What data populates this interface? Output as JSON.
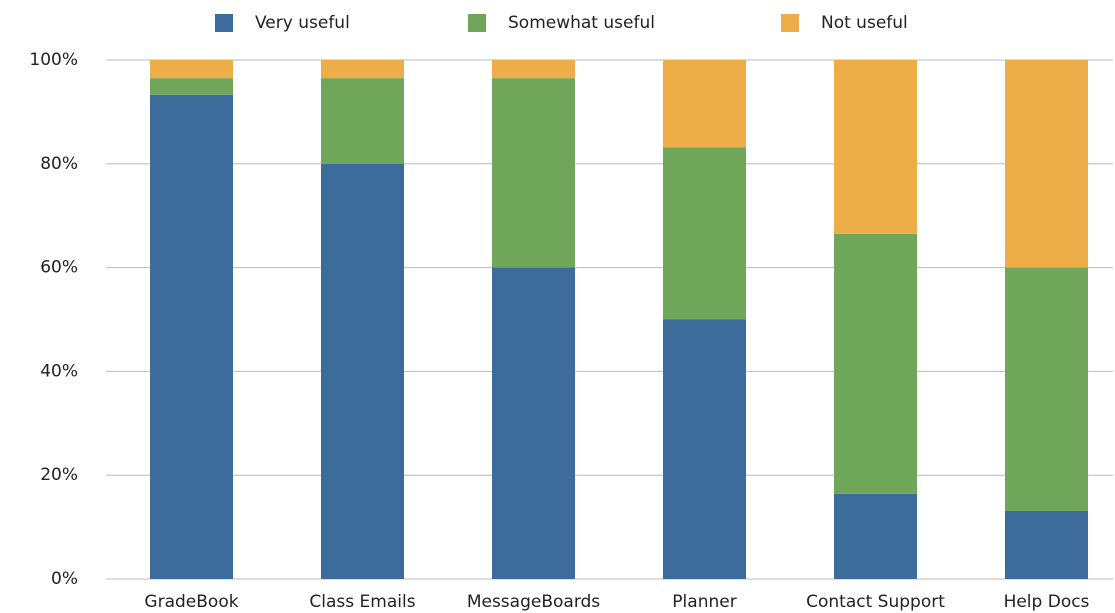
{
  "chart_data": {
    "type": "stacked_bar",
    "categories": [
      "GradeBook",
      "Class Emails",
      "MessageBoards",
      "Planner",
      "Contact Support",
      "Help Docs"
    ],
    "series": [
      {
        "name": "Very useful",
        "color": "#3c6b9c",
        "values": [
          93.3,
          80,
          60,
          50,
          16.4,
          13.1
        ]
      },
      {
        "name": "Somewhat useful",
        "color": "#6fa65a",
        "values": [
          3.2,
          16.5,
          36.5,
          33.2,
          50.1,
          46.9
        ]
      },
      {
        "name": "Not useful",
        "color": "#edae4a",
        "values": [
          3.5,
          3.5,
          3.5,
          16.8,
          33.5,
          40
        ]
      }
    ],
    "ylim": [
      0,
      100
    ],
    "yticks": [
      {
        "value": 0,
        "label": "0%"
      },
      {
        "value": 20,
        "label": "20%"
      },
      {
        "value": 40,
        "label": "40%"
      },
      {
        "value": 60,
        "label": "60%"
      },
      {
        "value": 80,
        "label": "80%"
      },
      {
        "value": 100,
        "label": "100%"
      }
    ],
    "grid": true,
    "legend": "top"
  }
}
